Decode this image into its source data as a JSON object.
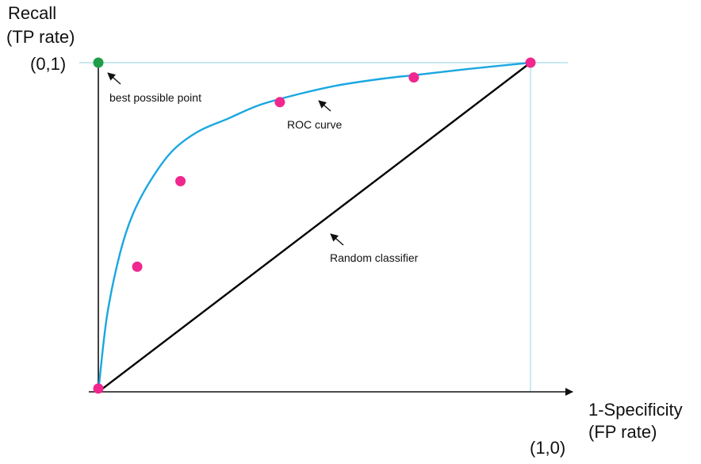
{
  "chart_data": {
    "type": "line",
    "ylabel_lines": [
      "Recall",
      "(TP rate)"
    ],
    "xlabel_lines": [
      "1-Specificity",
      "(FP rate)"
    ],
    "xlim": [
      0,
      1
    ],
    "ylim": [
      0,
      1
    ],
    "corner_labels": {
      "top_left": "(0,1)",
      "bottom_right": "(1,0)"
    },
    "series": [
      {
        "kind": "roc-curve",
        "color": "#1aa7e0",
        "x": [
          0,
          0.02,
          0.05,
          0.08,
          0.12,
          0.17,
          0.23,
          0.3,
          0.37,
          0.45,
          0.55,
          0.65,
          0.75,
          0.85,
          1.0
        ],
        "y": [
          0,
          0.23,
          0.42,
          0.54,
          0.64,
          0.73,
          0.79,
          0.83,
          0.87,
          0.9,
          0.93,
          0.95,
          0.965,
          0.98,
          1.0
        ]
      },
      {
        "kind": "random-classifier",
        "color": "#000000",
        "x": [
          0,
          1
        ],
        "y": [
          0,
          1
        ]
      }
    ],
    "points": {
      "color": "#f0278f",
      "x": [
        0,
        0.09,
        0.19,
        0.42,
        0.73,
        1.0
      ],
      "y": [
        0.01,
        0.38,
        0.64,
        0.88,
        0.955,
        1.0
      ]
    },
    "best_point": {
      "x": 0,
      "y": 1,
      "color": "#1f9d48"
    },
    "guide_color": "#a8dbe8",
    "annotations": {
      "best": "best possible point",
      "roc": "ROC curve",
      "random": "Random classifier"
    }
  }
}
